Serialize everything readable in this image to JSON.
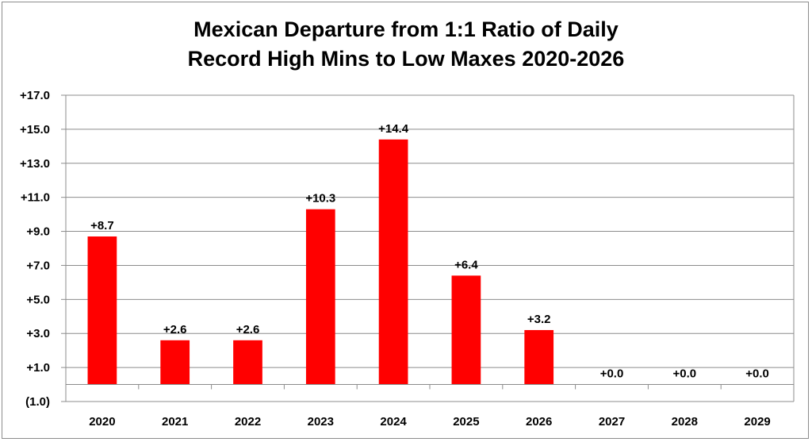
{
  "chart_data": {
    "type": "bar",
    "title": "Mexican Departure from 1:1 Ratio of Daily",
    "subtitle": "Record High Mins to Low Maxes 2020-2026",
    "xlabel": "",
    "ylabel": "",
    "categories": [
      "2020",
      "2021",
      "2022",
      "2023",
      "2024",
      "2025",
      "2026",
      "2027",
      "2028",
      "2029"
    ],
    "values": [
      8.7,
      2.6,
      2.6,
      10.3,
      14.4,
      6.4,
      3.2,
      0.0,
      0.0,
      0.0
    ],
    "data_labels": [
      "+8.7",
      "+2.6",
      "+2.6",
      "+10.3",
      "+14.4",
      "+6.4",
      "+3.2",
      "+0.0",
      "+0.0",
      "+0.0"
    ],
    "ylim": [
      -1,
      17
    ],
    "yticks": [
      -1,
      1,
      3,
      5,
      7,
      9,
      11,
      13,
      15,
      17
    ],
    "ytick_labels": [
      "(1.0)",
      "+1.0",
      "+3.0",
      "+5.0",
      "+7.0",
      "+9.0",
      "+11.0",
      "+13.0",
      "+15.0",
      "+17.0"
    ],
    "grid": true,
    "legend": "none",
    "colors": {
      "bar": "#ff0000",
      "grid": "#8c8c8c",
      "negative_tick": "#0000ff",
      "text": "#000000"
    }
  }
}
